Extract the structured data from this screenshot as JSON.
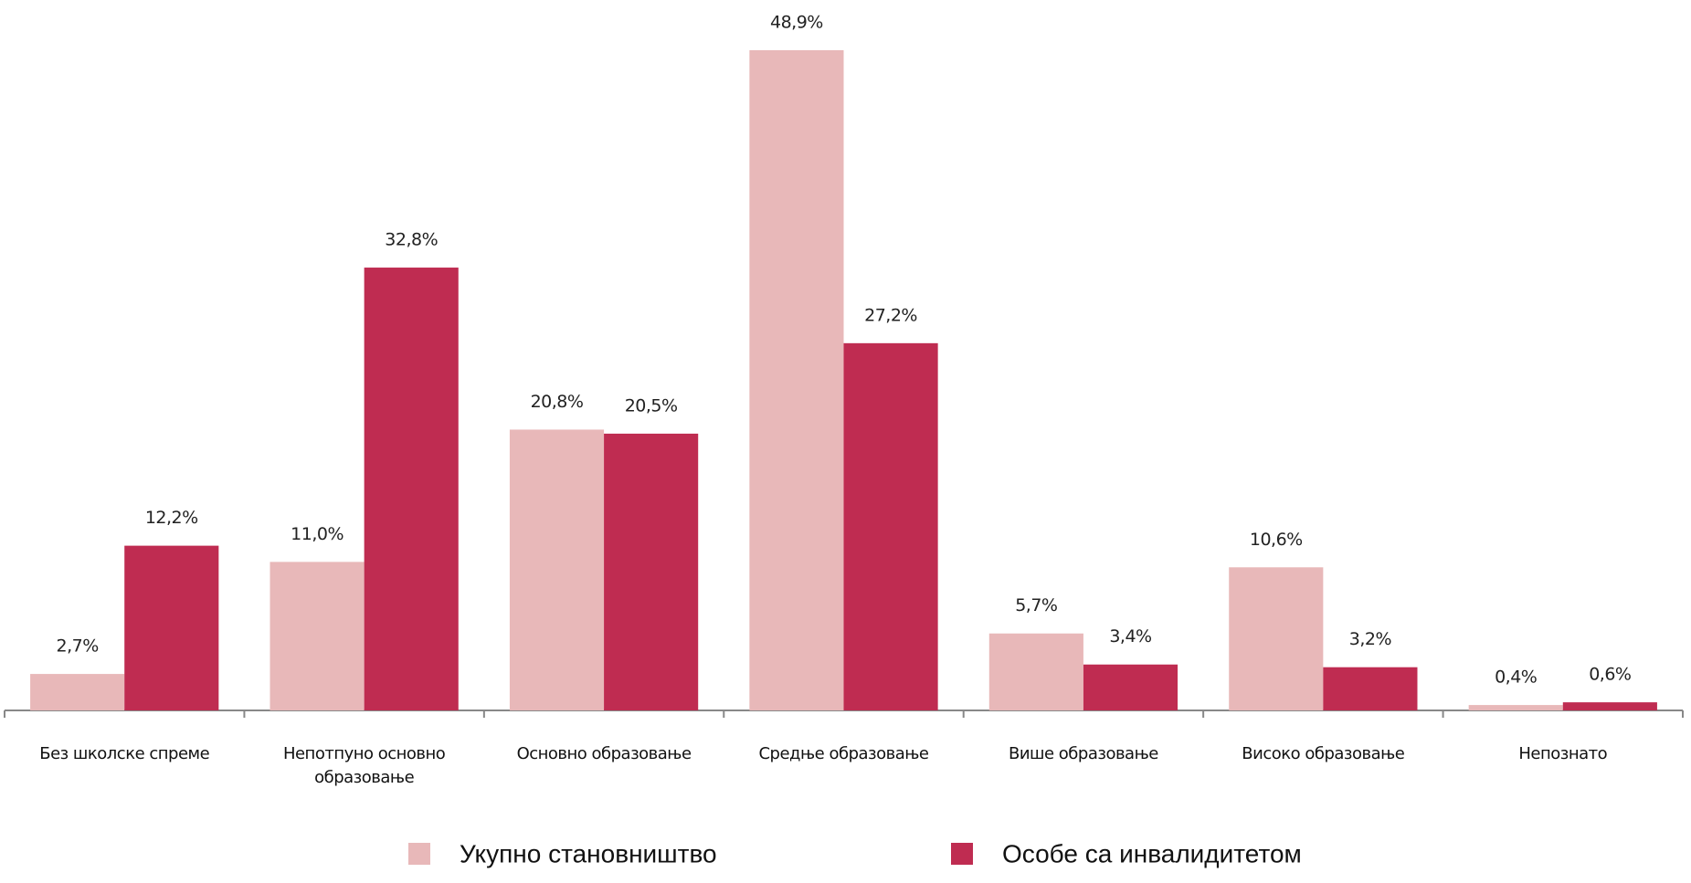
{
  "chart_data": {
    "type": "bar",
    "categories": [
      "Без школске спреме",
      "Непотпуно основно образовање",
      "Основно образовање",
      "Средње образовање",
      "Више образовање",
      "Високо образовање",
      "Непознато"
    ],
    "series": [
      {
        "name": "Укупно становништво",
        "color": "#e8b8b9",
        "values": [
          2.7,
          11.0,
          20.8,
          48.9,
          5.7,
          10.6,
          0.4
        ],
        "value_labels": [
          "2,7%",
          "11,0%",
          "20,8%",
          "48,9%",
          "5,7%",
          "10,6%",
          "0,4%"
        ]
      },
      {
        "name": "Особе са инвалидитетом",
        "color": "#bf2c51",
        "values": [
          12.2,
          32.8,
          20.5,
          27.2,
          3.4,
          3.2,
          0.6
        ],
        "value_labels": [
          "12,2%",
          "32,8%",
          "20,5%",
          "27,2%",
          "3,4%",
          "3,2%",
          "0,6%"
        ]
      }
    ]
  }
}
